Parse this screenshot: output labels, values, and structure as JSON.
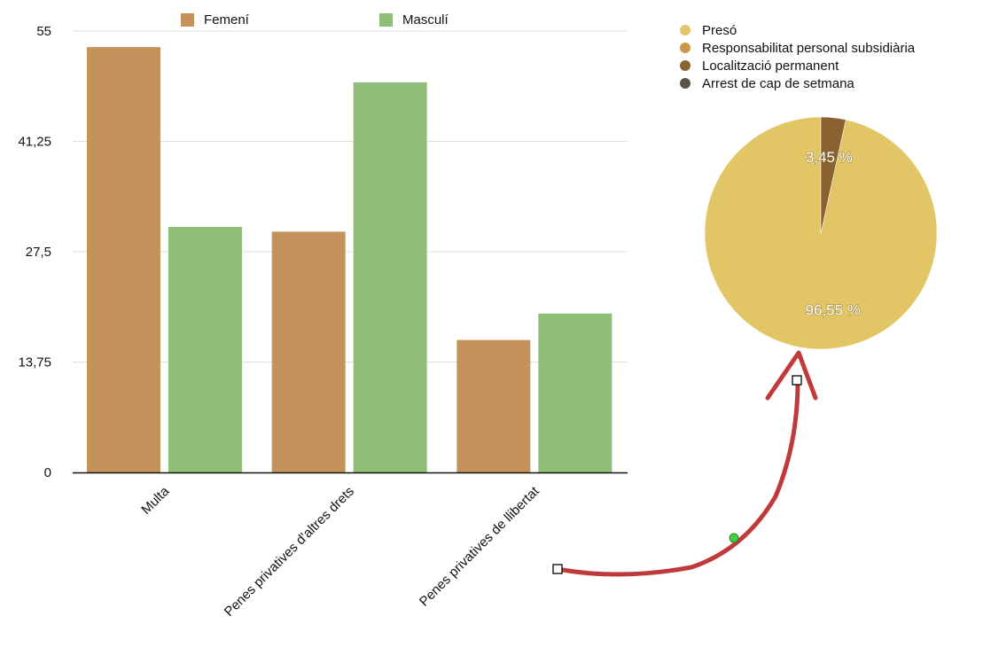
{
  "chart_data": [
    {
      "type": "bar",
      "categories": [
        "Multa",
        "Penes privatives d'altres drets",
        "Penes privatives de llibertat"
      ],
      "series": [
        {
          "name": "Femení",
          "values": [
            53,
            30,
            16.5
          ],
          "color": "#c4935c"
        },
        {
          "name": "Masculí",
          "values": [
            30.6,
            48.6,
            19.8
          ],
          "color": "#8fbf76"
        }
      ],
      "yticks": [
        "0",
        "13,75",
        "27,5",
        "41,25",
        "55"
      ],
      "ylim": [
        0,
        55
      ],
      "grid": true,
      "legend_position": "top"
    },
    {
      "type": "pie",
      "labels": [
        "Presó",
        "Responsabilitat personal subsidiària",
        "Localització permanent",
        "Arrest de cap de setmana"
      ],
      "values": [
        96.55,
        0,
        3.45,
        0
      ],
      "colors": [
        "#e2c564",
        "#cc9a47",
        "#8a6230",
        "#5a5348"
      ],
      "data_labels": [
        "96,55 %",
        "",
        "3,45 %",
        ""
      ],
      "legend_position": "top"
    }
  ],
  "annotation": {
    "arrow_color": "#c0393b",
    "handle_color": "#44cc44"
  }
}
